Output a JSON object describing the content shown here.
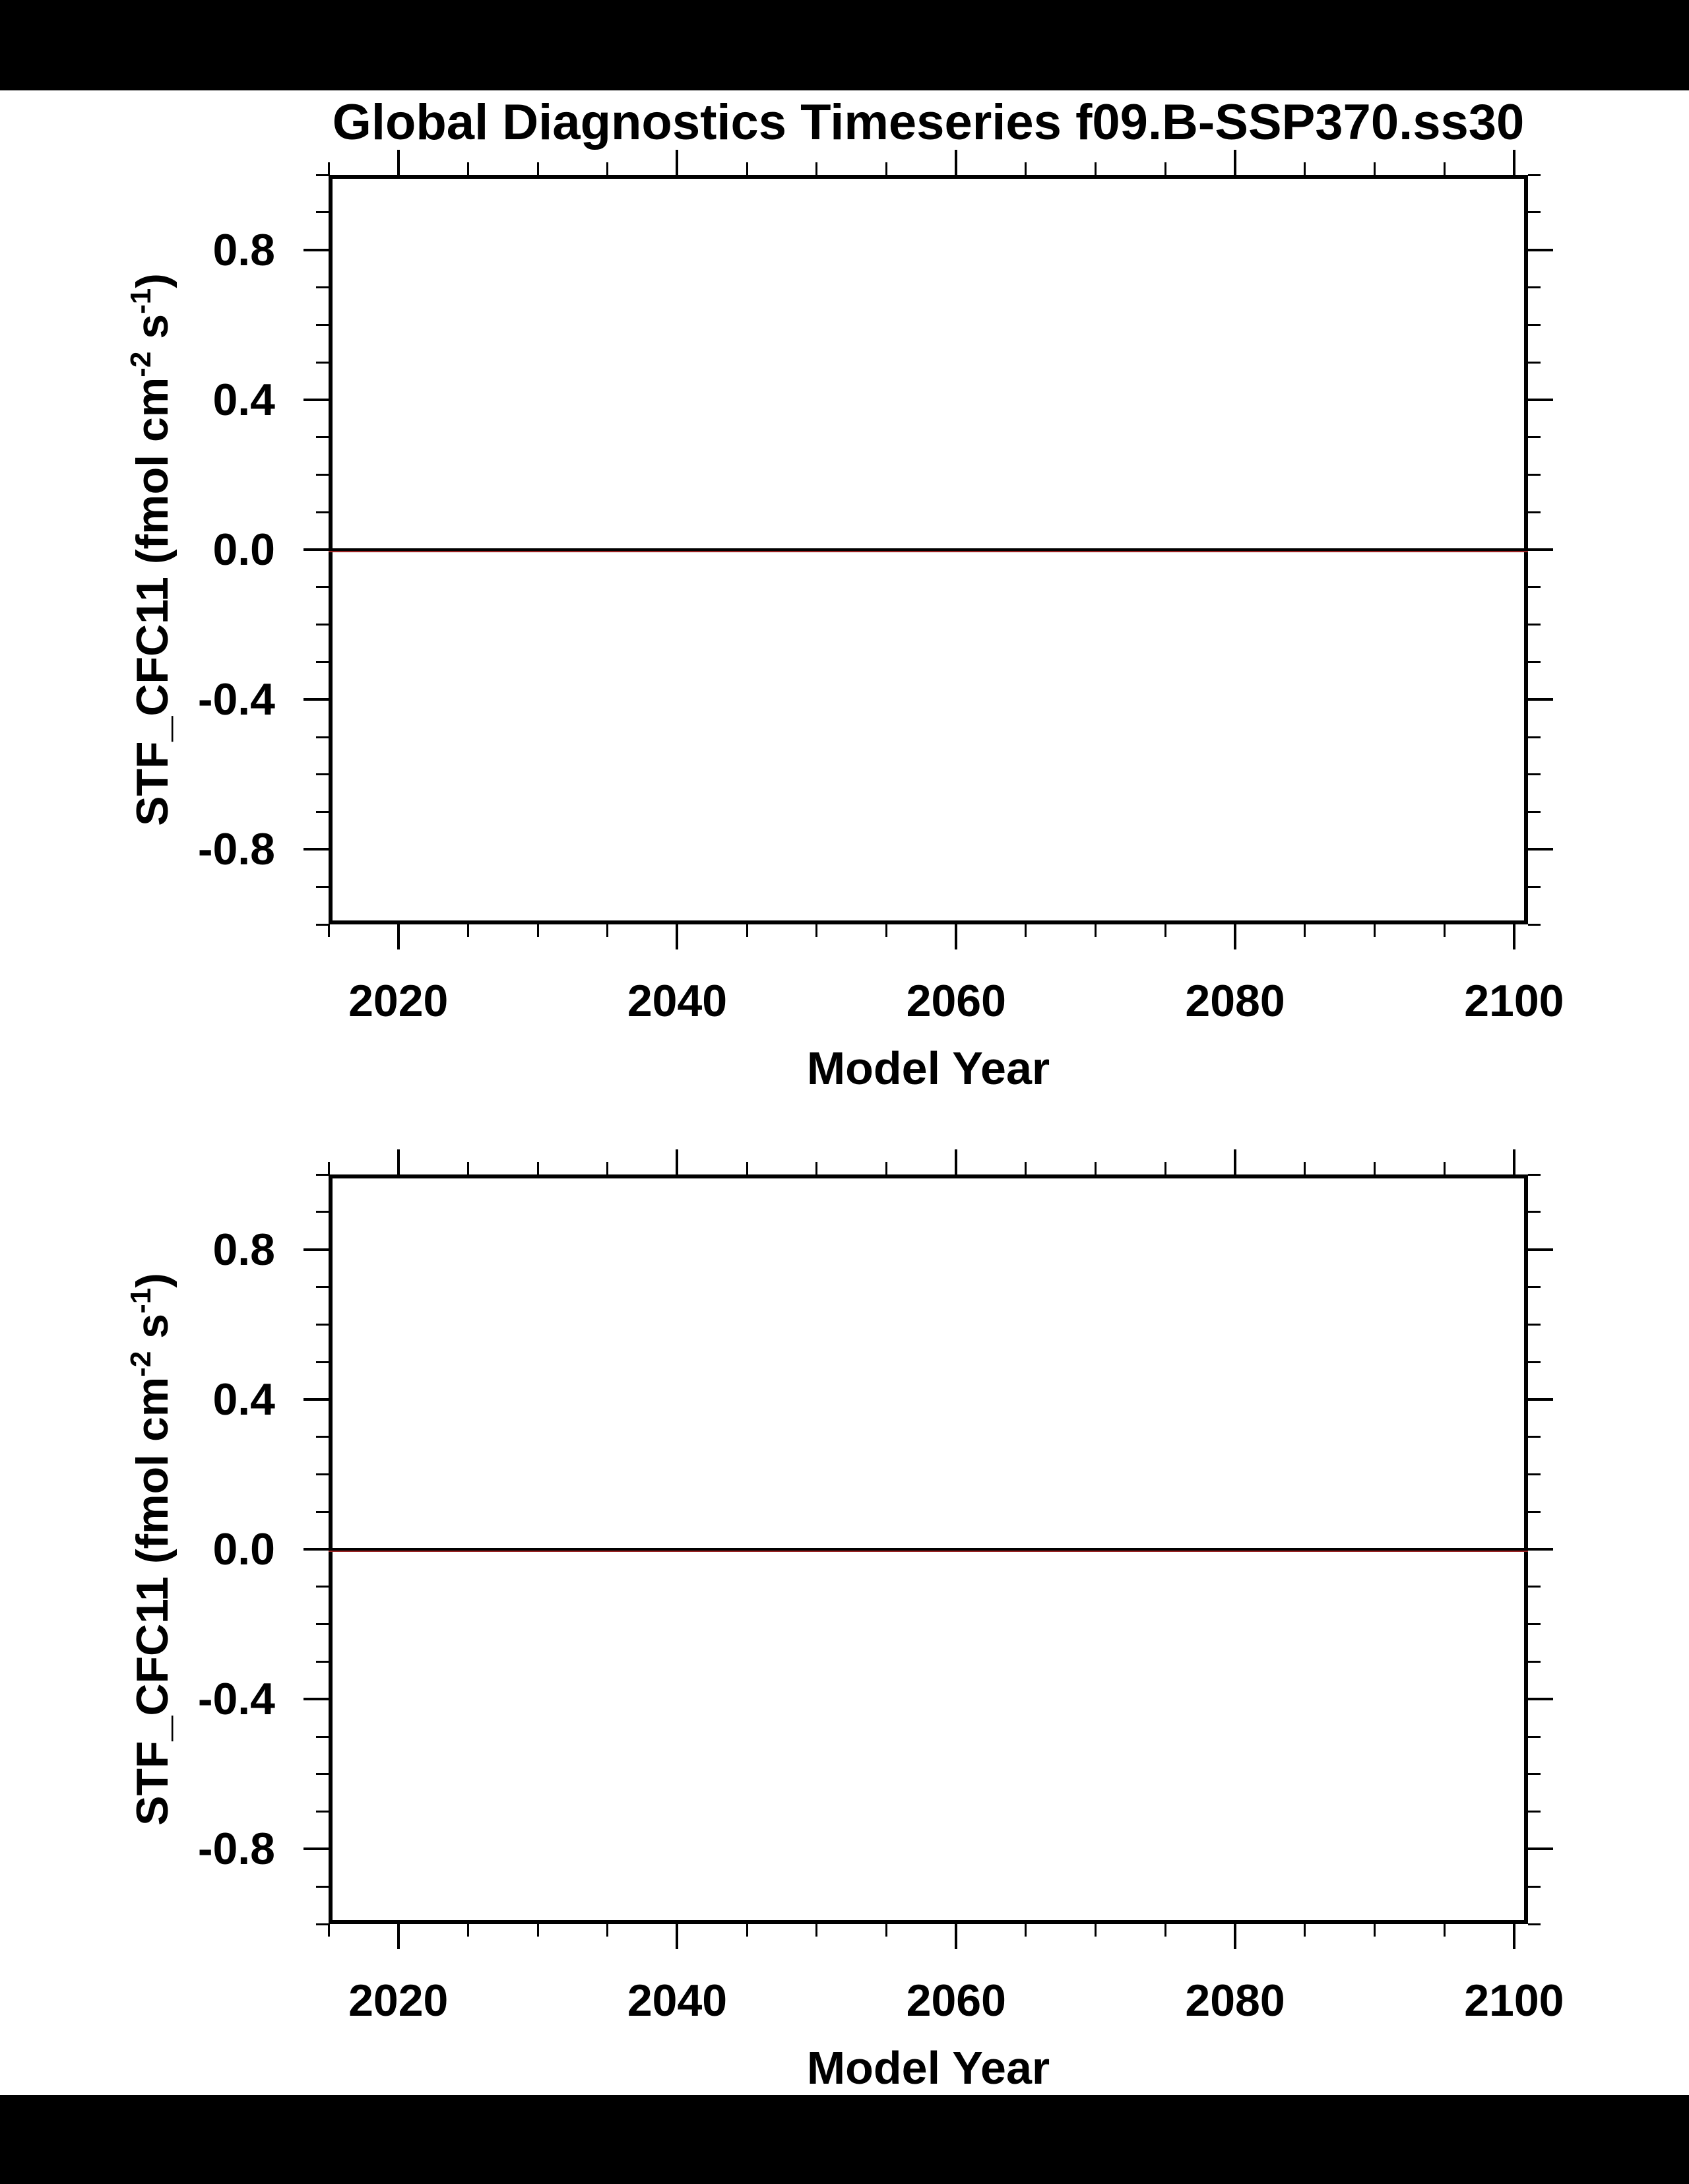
{
  "title": "Global Diagnostics Timeseries f09.B-SSP370.ss30",
  "background": {
    "page": "#ffffff",
    "letterbox": "#000000",
    "frame_color": "#000000"
  },
  "chart_data": [
    {
      "type": "line",
      "panel": "top",
      "title": "Global Diagnostics Timeseries f09.B-SSP370.ss30",
      "xlabel": "Model Year",
      "ylabel": "STF_CFC11 (fmol cm-2 s-1)",
      "ylabel_parts": {
        "pre": "STF_CFC11 (fmol cm",
        "sup1": "-2",
        "mid": " s",
        "sup2": "-1",
        "post": ")"
      },
      "xlim": [
        2015,
        2101
      ],
      "ylim": [
        -1.0,
        1.0
      ],
      "grid": false,
      "legend": null,
      "x_major_ticks": [
        2020,
        2040,
        2060,
        2080,
        2100
      ],
      "x_major_labels": [
        "2020",
        "2040",
        "2060",
        "2080",
        "2100"
      ],
      "x_minor_ticks": [
        2015,
        2025,
        2030,
        2035,
        2045,
        2050,
        2055,
        2065,
        2070,
        2075,
        2085,
        2090,
        2095
      ],
      "y_major_ticks": [
        0.8,
        0.4,
        0.0,
        -0.4,
        -0.8
      ],
      "y_major_labels": [
        "0.8",
        "0.4",
        "0.0",
        "-0.4",
        "-0.8"
      ],
      "y_minor_ticks": [
        1.0,
        0.9,
        0.7,
        0.6,
        0.5,
        0.3,
        0.2,
        0.1,
        -0.1,
        -0.2,
        -0.3,
        -0.5,
        -0.6,
        -0.7,
        -0.9,
        -1.0
      ],
      "series": [
        {
          "name": "STF_CFC11 black line",
          "color": "#000000",
          "x_range": [
            2015,
            2101
          ],
          "y_constant": 0.0
        },
        {
          "name": "STF_CFC11 red line",
          "color": "#992222",
          "x_range": [
            2015,
            2101
          ],
          "y_constant": 0.0
        }
      ]
    },
    {
      "type": "line",
      "panel": "bottom",
      "title": "",
      "xlabel": "Model Year",
      "ylabel": "STF_CFC11 (fmol cm-2 s-1)",
      "ylabel_parts": {
        "pre": "STF_CFC11 (fmol cm",
        "sup1": "-2",
        "mid": " s",
        "sup2": "-1",
        "post": ")"
      },
      "xlim": [
        2015,
        2101
      ],
      "ylim": [
        -1.0,
        1.0
      ],
      "grid": false,
      "legend": null,
      "x_major_ticks": [
        2020,
        2040,
        2060,
        2080,
        2100
      ],
      "x_major_labels": [
        "2020",
        "2040",
        "2060",
        "2080",
        "2100"
      ],
      "x_minor_ticks": [
        2015,
        2025,
        2030,
        2035,
        2045,
        2050,
        2055,
        2065,
        2070,
        2075,
        2085,
        2090,
        2095
      ],
      "y_major_ticks": [
        0.8,
        0.4,
        0.0,
        -0.4,
        -0.8
      ],
      "y_major_labels": [
        "0.8",
        "0.4",
        "0.0",
        "-0.4",
        "-0.8"
      ],
      "y_minor_ticks": [
        1.0,
        0.9,
        0.7,
        0.6,
        0.5,
        0.3,
        0.2,
        0.1,
        -0.1,
        -0.2,
        -0.3,
        -0.5,
        -0.6,
        -0.7,
        -0.9,
        -1.0
      ],
      "series": [
        {
          "name": "STF_CFC11 black line",
          "color": "#000000",
          "x_range": [
            2015,
            2101
          ],
          "y_constant": 0.0
        },
        {
          "name": "STF_CFC11 red line",
          "color": "#992222",
          "x_range": [
            2015,
            2101
          ],
          "y_constant": 0.0
        }
      ]
    }
  ]
}
